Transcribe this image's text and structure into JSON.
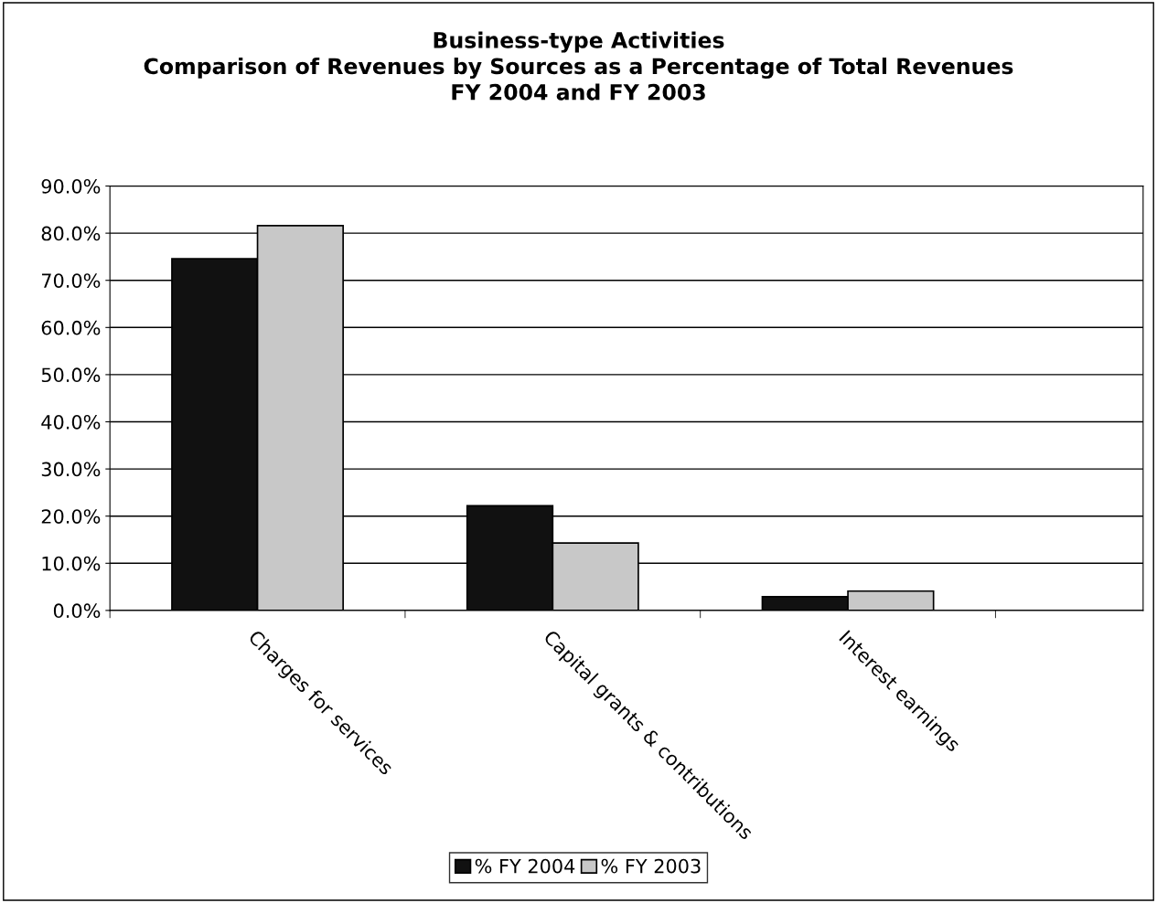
{
  "chart_data": {
    "type": "bar",
    "title": "Business-type Activities\nComparison of Revenues by Sources as a Percentage of Total Revenues\nFY 2004 and FY 2003",
    "categories": [
      "Charges for services",
      "Capital grants & contributions",
      "Interest earnings"
    ],
    "series": [
      {
        "name": "% FY 2004",
        "color": "#111111",
        "values": [
          74.6,
          22.2,
          2.9
        ]
      },
      {
        "name": "% FY 2003",
        "color": "#c8c8c8",
        "values": [
          81.6,
          14.3,
          4.1
        ]
      }
    ],
    "ylim": [
      0,
      90
    ],
    "yticks": [
      {
        "value": 0,
        "label": "0.0%"
      },
      {
        "value": 10,
        "label": "10.0%"
      },
      {
        "value": 20,
        "label": "20.0%"
      },
      {
        "value": 30,
        "label": "30.0%"
      },
      {
        "value": 40,
        "label": "40.0%"
      },
      {
        "value": 50,
        "label": "50.0%"
      },
      {
        "value": 60,
        "label": "60.0%"
      },
      {
        "value": 70,
        "label": "70.0%"
      },
      {
        "value": 80,
        "label": "80.0%"
      },
      {
        "value": 90,
        "label": "90.0%"
      }
    ],
    "grid": "y",
    "legend": "bottom"
  }
}
